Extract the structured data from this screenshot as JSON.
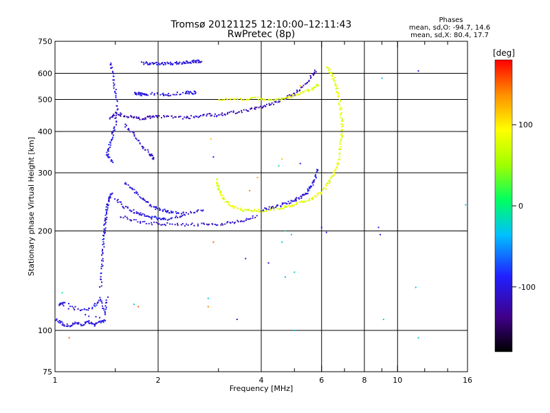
{
  "chart_data": {
    "type": "scatter",
    "title": "Tromsø 20121125 12:10:00–12:11:43",
    "subtitle": "RwPretec (8p)",
    "xlabel": "Frequency [MHz]",
    "ylabel": "Stationary phase Virtual Height [km]",
    "x_scale": "log",
    "y_scale": "log",
    "xlim": [
      1,
      16
    ],
    "ylim": [
      75,
      750
    ],
    "grid": true,
    "x_ticks": [
      {
        "v": 1,
        "label": "1"
      },
      {
        "v": 2,
        "label": "2"
      },
      {
        "v": 4,
        "label": "4"
      },
      {
        "v": 6,
        "label": "6"
      },
      {
        "v": 8,
        "label": "8"
      },
      {
        "v": 10,
        "label": "10"
      },
      {
        "v": 16,
        "label": "16"
      }
    ],
    "x_minor_ticks": [
      1.5,
      3,
      5,
      7,
      9,
      12,
      14
    ],
    "x_grid": [
      2,
      4,
      6,
      8,
      10
    ],
    "y_ticks": [
      {
        "v": 75,
        "label": "75"
      },
      {
        "v": 100,
        "label": "100"
      },
      {
        "v": 200,
        "label": "200"
      },
      {
        "v": 300,
        "label": "300"
      },
      {
        "v": 400,
        "label": "400"
      },
      {
        "v": 500,
        "label": "500"
      },
      {
        "v": 600,
        "label": "600"
      },
      {
        "v": 750,
        "label": "750"
      }
    ],
    "y_grid": [
      100,
      200,
      300,
      400,
      500,
      600
    ],
    "legend": {
      "header": "Phases",
      "line1": "mean, sd,O: -94.7, 14.6",
      "line2": "mean, sd,X:  80.4, 17.7"
    },
    "colorbar": {
      "label": "[deg]",
      "range": [
        -180,
        180
      ],
      "ticks": [
        {
          "v": 100,
          "label": "100"
        },
        {
          "v": 0,
          "label": "0"
        },
        {
          "v": -100,
          "label": "-100"
        }
      ]
    },
    "traces": [
      {
        "name": "",
        "phase": -100,
        "points": [
          [
            1.0,
            108
          ],
          [
            1.05,
            105
          ],
          [
            1.1,
            103
          ],
          [
            1.15,
            105
          ],
          [
            1.2,
            104
          ],
          [
            1.25,
            106
          ],
          [
            1.3,
            104
          ],
          [
            1.35,
            106
          ],
          [
            1.4,
            107
          ],
          [
            1.03,
            120
          ],
          [
            1.06,
            121
          ],
          [
            1.2,
            115
          ],
          [
            1.3,
            118
          ],
          [
            1.36,
            125
          ],
          [
            1.4,
            112
          ],
          [
            1.42,
            128
          ]
        ]
      },
      {
        "name": "",
        "phase": -100,
        "points": [
          [
            1.36,
            135
          ],
          [
            1.37,
            155
          ],
          [
            1.38,
            175
          ],
          [
            1.39,
            195
          ],
          [
            1.4,
            210
          ],
          [
            1.41,
            225
          ],
          [
            1.42,
            240
          ],
          [
            1.44,
            250
          ],
          [
            1.47,
            262
          ]
        ]
      },
      {
        "name": "",
        "phase": -100,
        "points": [
          [
            1.5,
            250
          ],
          [
            1.6,
            236
          ],
          [
            1.7,
            229
          ],
          [
            1.8,
            224
          ],
          [
            1.9,
            220
          ],
          [
            2.0,
            218
          ],
          [
            2.1,
            217
          ],
          [
            2.3,
            222
          ],
          [
            2.5,
            228
          ],
          [
            2.75,
            233
          ]
        ]
      },
      {
        "name": "",
        "phase": -100,
        "points": [
          [
            1.6,
            280
          ],
          [
            1.7,
            265
          ],
          [
            1.8,
            250
          ],
          [
            1.9,
            240
          ],
          [
            2.0,
            233
          ],
          [
            2.1,
            230
          ],
          [
            2.2,
            228
          ],
          [
            2.4,
            227
          ]
        ]
      },
      {
        "name": "",
        "phase": -110,
        "points": [
          [
            1.55,
            222
          ],
          [
            1.7,
            215
          ],
          [
            1.9,
            211
          ],
          [
            2.1,
            210
          ],
          [
            2.4,
            209
          ],
          [
            2.7,
            209
          ],
          [
            3.0,
            210
          ],
          [
            3.3,
            212
          ],
          [
            3.6,
            216
          ],
          [
            3.9,
            223
          ]
        ]
      },
      {
        "name": "",
        "phase": -120,
        "points": [
          [
            1.45,
            440
          ],
          [
            1.52,
            455
          ],
          [
            1.6,
            445
          ],
          [
            1.7,
            440
          ],
          [
            1.8,
            438
          ],
          [
            1.9,
            442
          ],
          [
            2.0,
            445
          ],
          [
            2.2,
            443
          ],
          [
            2.4,
            440
          ],
          [
            2.6,
            445
          ],
          [
            2.8,
            450
          ],
          [
            3.0,
            447
          ],
          [
            3.2,
            455
          ],
          [
            3.5,
            460
          ],
          [
            3.8,
            470
          ],
          [
            4.1,
            478
          ],
          [
            4.4,
            490
          ],
          [
            4.7,
            505
          ],
          [
            5.0,
            520
          ],
          [
            5.3,
            545
          ],
          [
            5.6,
            585
          ],
          [
            5.8,
            615
          ]
        ]
      },
      {
        "name": "",
        "phase": -110,
        "points": [
          [
            1.6,
            420
          ],
          [
            1.7,
            390
          ],
          [
            1.8,
            360
          ],
          [
            1.9,
            340
          ],
          [
            1.95,
            330
          ]
        ]
      },
      {
        "name": "",
        "phase": -100,
        "points": [
          [
            1.45,
            650
          ],
          [
            1.48,
            590
          ],
          [
            1.5,
            530
          ],
          [
            1.52,
            470
          ],
          [
            1.5,
            420
          ],
          [
            1.47,
            390
          ],
          [
            1.44,
            360
          ],
          [
            1.42,
            340
          ],
          [
            1.48,
            320
          ]
        ]
      },
      {
        "name": "",
        "phase": -100,
        "points": [
          [
            1.8,
            645
          ],
          [
            1.9,
            642
          ],
          [
            2.0,
            642
          ],
          [
            2.1,
            643
          ],
          [
            2.2,
            643
          ],
          [
            2.3,
            645
          ],
          [
            2.4,
            648
          ],
          [
            2.5,
            650
          ],
          [
            2.6,
            652
          ],
          [
            2.7,
            654
          ]
        ]
      },
      {
        "name": "",
        "phase": -100,
        "points": [
          [
            1.7,
            520
          ],
          [
            1.75,
            520
          ],
          [
            1.8,
            518
          ],
          [
            1.85,
            520
          ],
          [
            2.05,
            518
          ],
          [
            2.15,
            517
          ],
          [
            2.4,
            525
          ],
          [
            2.5,
            524
          ],
          [
            2.6,
            525
          ]
        ]
      },
      {
        "name": "",
        "phase": 80,
        "points": [
          [
            3.0,
            500
          ],
          [
            3.3,
            500
          ],
          [
            3.6,
            502
          ],
          [
            3.9,
            505
          ],
          [
            4.2,
            495
          ],
          [
            4.5,
            500
          ],
          [
            4.8,
            505
          ],
          [
            5.1,
            520
          ],
          [
            5.4,
            530
          ],
          [
            5.7,
            540
          ],
          [
            5.9,
            560
          ]
        ]
      },
      {
        "name": "",
        "phase": 80,
        "points": [
          [
            6.2,
            625
          ],
          [
            6.4,
            600
          ],
          [
            6.6,
            560
          ],
          [
            6.7,
            520
          ],
          [
            6.8,
            480
          ],
          [
            6.85,
            440
          ],
          [
            6.9,
            410
          ],
          [
            6.85,
            380
          ],
          [
            6.8,
            350
          ],
          [
            6.7,
            320
          ],
          [
            6.55,
            300
          ],
          [
            6.35,
            285
          ],
          [
            6.15,
            270
          ],
          [
            5.9,
            258
          ],
          [
            5.6,
            250
          ],
          [
            5.3,
            245
          ],
          [
            5.0,
            240
          ],
          [
            4.7,
            236
          ],
          [
            4.4,
            233
          ],
          [
            4.1,
            231
          ],
          [
            3.9,
            230
          ],
          [
            3.7,
            230
          ],
          [
            3.5,
            232
          ],
          [
            3.3,
            237
          ],
          [
            3.15,
            245
          ],
          [
            3.05,
            258
          ],
          [
            3.0,
            270
          ],
          [
            2.95,
            290
          ]
        ]
      },
      {
        "name": "",
        "phase": -100,
        "points": [
          [
            4.0,
            232
          ],
          [
            4.3,
            235
          ],
          [
            4.6,
            240
          ],
          [
            4.9,
            245
          ],
          [
            5.1,
            250
          ],
          [
            5.3,
            256
          ],
          [
            5.45,
            262
          ],
          [
            5.6,
            273
          ],
          [
            5.75,
            290
          ],
          [
            5.85,
            308
          ]
        ]
      }
    ],
    "scatter": [
      {
        "x": 1.1,
        "y": 95,
        "phase": 150
      },
      {
        "x": 1.05,
        "y": 130,
        "phase": -10
      },
      {
        "x": 1.7,
        "y": 120,
        "phase": -20
      },
      {
        "x": 1.75,
        "y": 118,
        "phase": 150
      },
      {
        "x": 2.8,
        "y": 118,
        "phase": 140
      },
      {
        "x": 2.8,
        "y": 125,
        "phase": -30
      },
      {
        "x": 2.85,
        "y": 380,
        "phase": 120
      },
      {
        "x": 2.9,
        "y": 335,
        "phase": -90
      },
      {
        "x": 3.4,
        "y": 108,
        "phase": -100
      },
      {
        "x": 3.6,
        "y": 165,
        "phase": -100
      },
      {
        "x": 2.9,
        "y": 185,
        "phase": 150
      },
      {
        "x": 4.2,
        "y": 160,
        "phase": -100
      },
      {
        "x": 4.6,
        "y": 185,
        "phase": -30
      },
      {
        "x": 4.7,
        "y": 200,
        "phase": -20
      },
      {
        "x": 4.9,
        "y": 195,
        "phase": -30
      },
      {
        "x": 5.0,
        "y": 150,
        "phase": -20
      },
      {
        "x": 4.7,
        "y": 145,
        "phase": -40
      },
      {
        "x": 4.6,
        "y": 330,
        "phase": 120
      },
      {
        "x": 4.5,
        "y": 315,
        "phase": -10
      },
      {
        "x": 3.7,
        "y": 265,
        "phase": 140
      },
      {
        "x": 3.9,
        "y": 290,
        "phase": 130
      },
      {
        "x": 5.2,
        "y": 550,
        "phase": 120
      },
      {
        "x": 5.2,
        "y": 320,
        "phase": -100
      },
      {
        "x": 5.0,
        "y": 100,
        "phase": -30
      },
      {
        "x": 6.0,
        "y": 205,
        "phase": -100
      },
      {
        "x": 6.2,
        "y": 198,
        "phase": -100
      },
      {
        "x": 8.8,
        "y": 205,
        "phase": -100
      },
      {
        "x": 8.9,
        "y": 195,
        "phase": -100
      },
      {
        "x": 9.0,
        "y": 580,
        "phase": -30
      },
      {
        "x": 9.1,
        "y": 108,
        "phase": -20
      },
      {
        "x": 11.5,
        "y": 610,
        "phase": -100
      },
      {
        "x": 11.5,
        "y": 95,
        "phase": -30
      },
      {
        "x": 11.3,
        "y": 135,
        "phase": -30
      },
      {
        "x": 15.8,
        "y": 240,
        "phase": -30
      }
    ]
  }
}
